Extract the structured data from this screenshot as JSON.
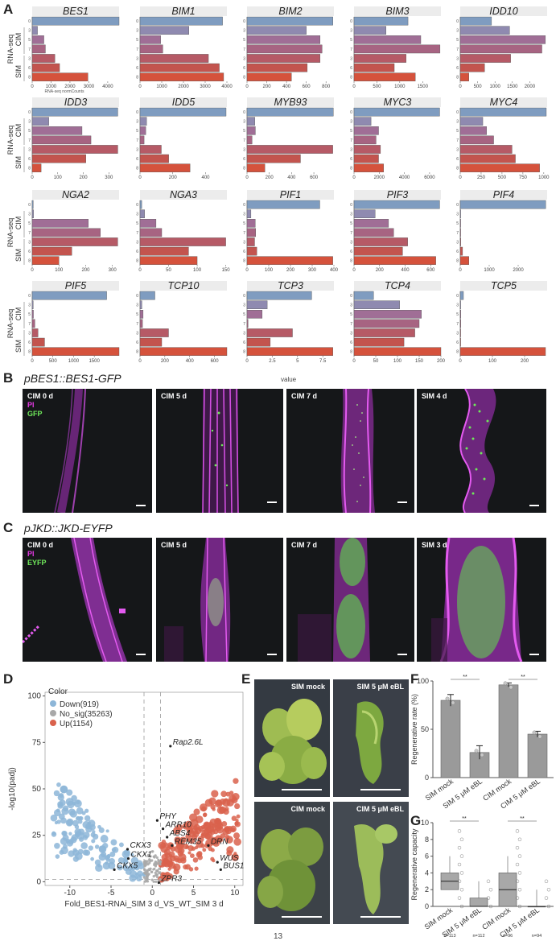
{
  "panel_a": {
    "label": "A",
    "y_axis_label": "RNA-seq",
    "x_axis_label": "RNA-seq normCounts",
    "bottom_label": "value",
    "group_cim": "CIM",
    "group_sim": "SIM",
    "time_points": [
      "0",
      "3",
      "5",
      "7",
      "3",
      "6",
      "8"
    ]
  },
  "chart_data": [
    {
      "type": "bar",
      "title": "BES1",
      "categories": [
        "0",
        "3",
        "5",
        "7",
        "3",
        "6",
        "8"
      ],
      "values": [
        4600,
        280,
        620,
        700,
        1200,
        1450,
        2950
      ],
      "xlim": [
        0,
        4600
      ],
      "ticks": [
        0,
        1000,
        2000,
        3000,
        4000
      ]
    },
    {
      "type": "bar",
      "title": "BIM1",
      "categories": [
        "0",
        "3",
        "5",
        "7",
        "3",
        "6",
        "8"
      ],
      "values": [
        3800,
        2250,
        950,
        1050,
        3150,
        3650,
        3850
      ],
      "xlim": [
        0,
        4000
      ],
      "ticks": [
        0,
        1000,
        2000,
        3000,
        4000
      ]
    },
    {
      "type": "bar",
      "title": "BIM2",
      "categories": [
        "0",
        "3",
        "5",
        "7",
        "3",
        "6",
        "8"
      ],
      "values": [
        870,
        600,
        740,
        760,
        740,
        610,
        450
      ],
      "xlim": [
        0,
        880
      ],
      "ticks": [
        0,
        200,
        400,
        600,
        800
      ]
    },
    {
      "type": "bar",
      "title": "BIM3",
      "categories": [
        "0",
        "3",
        "5",
        "7",
        "3",
        "6",
        "8"
      ],
      "values": [
        1180,
        700,
        1460,
        1880,
        1140,
        880,
        1340
      ],
      "xlim": [
        0,
        1900
      ],
      "ticks": [
        0,
        500,
        1000,
        1500
      ]
    },
    {
      "type": "bar",
      "title": "IDD10",
      "categories": [
        "0",
        "3",
        "5",
        "7",
        "3",
        "6",
        "8"
      ],
      "values": [
        900,
        1420,
        2450,
        2350,
        1450,
        700,
        250
      ],
      "xlim": [
        0,
        2500
      ],
      "ticks": [
        0,
        500,
        1000,
        1500,
        2000
      ]
    },
    {
      "type": "bar",
      "title": "IDD3",
      "categories": [
        "0",
        "3",
        "5",
        "7",
        "3",
        "6",
        "8"
      ],
      "values": [
        335,
        65,
        195,
        230,
        335,
        210,
        35
      ],
      "xlim": [
        0,
        340
      ],
      "ticks": [
        0,
        100,
        200,
        300
      ]
    },
    {
      "type": "bar",
      "title": "IDD5",
      "categories": [
        "0",
        "3",
        "5",
        "7",
        "3",
        "6",
        "8"
      ],
      "values": [
        525,
        40,
        35,
        25,
        130,
        175,
        305
      ],
      "xlim": [
        0,
        530
      ],
      "ticks": [
        0,
        200,
        400
      ]
    },
    {
      "type": "bar",
      "title": "MYB93",
      "categories": [
        "0",
        "3",
        "5",
        "7",
        "3",
        "6",
        "8"
      ],
      "values": [
        775,
        70,
        75,
        45,
        770,
        480,
        160
      ],
      "xlim": [
        0,
        780
      ],
      "ticks": [
        0,
        200,
        400,
        600
      ]
    },
    {
      "type": "bar",
      "title": "MYC3",
      "categories": [
        "0",
        "3",
        "5",
        "7",
        "3",
        "6",
        "8"
      ],
      "values": [
        6800,
        1350,
        1950,
        1750,
        2100,
        1950,
        2350
      ],
      "xlim": [
        0,
        6900
      ],
      "ticks": [
        0,
        2000,
        4000,
        6000
      ]
    },
    {
      "type": "bar",
      "title": "MYC4",
      "categories": [
        "0",
        "3",
        "5",
        "7",
        "3",
        "6",
        "8"
      ],
      "values": [
        1030,
        270,
        315,
        400,
        620,
        660,
        950
      ],
      "xlim": [
        0,
        1040
      ],
      "ticks": [
        0,
        250,
        500,
        750,
        1000
      ]
    },
    {
      "type": "bar",
      "title": "NGA2",
      "categories": [
        "0",
        "3",
        "5",
        "7",
        "3",
        "6",
        "8"
      ],
      "values": [
        4,
        5,
        210,
        255,
        320,
        148,
        100
      ],
      "xlim": [
        0,
        325
      ],
      "ticks": [
        0,
        100,
        200,
        300
      ]
    },
    {
      "type": "bar",
      "title": "NGA3",
      "categories": [
        "0",
        "3",
        "5",
        "7",
        "3",
        "6",
        "8"
      ],
      "values": [
        3,
        8,
        28,
        38,
        150,
        85,
        100
      ],
      "xlim": [
        0,
        152
      ],
      "ticks": [
        0,
        50,
        100,
        150
      ]
    },
    {
      "type": "bar",
      "title": "PIF1",
      "categories": [
        "0",
        "3",
        "5",
        "7",
        "3",
        "6",
        "8"
      ],
      "values": [
        335,
        18,
        38,
        40,
        35,
        45,
        395
      ],
      "xlim": [
        0,
        400
      ],
      "ticks": [
        0,
        100,
        200,
        300,
        400
      ]
    },
    {
      "type": "bar",
      "title": "PIF3",
      "categories": [
        "0",
        "3",
        "5",
        "7",
        "3",
        "6",
        "8"
      ],
      "values": [
        670,
        165,
        270,
        310,
        420,
        380,
        640
      ],
      "xlim": [
        0,
        680
      ],
      "ticks": [
        0,
        200,
        400,
        600
      ]
    },
    {
      "type": "bar",
      "title": "PIF4",
      "categories": [
        "0",
        "3",
        "5",
        "7",
        "3",
        "6",
        "8"
      ],
      "values": [
        2950,
        2,
        2,
        2,
        20,
        80,
        300
      ],
      "xlim": [
        0,
        3000
      ],
      "ticks": [
        0,
        1000,
        2000
      ]
    },
    {
      "type": "bar",
      "title": "PIF5",
      "categories": [
        "0",
        "3",
        "5",
        "7",
        "3",
        "6",
        "8"
      ],
      "values": [
        1800,
        25,
        30,
        65,
        140,
        300,
        2100
      ],
      "xlim": [
        0,
        2100
      ],
      "ticks": [
        0,
        500,
        1000,
        1500
      ]
    },
    {
      "type": "bar",
      "title": "TCP10",
      "categories": [
        "0",
        "3",
        "5",
        "7",
        "3",
        "6",
        "8"
      ],
      "values": [
        120,
        15,
        25,
        20,
        230,
        175,
        700
      ],
      "xlim": [
        0,
        700
      ],
      "ticks": [
        0,
        200,
        400,
        600
      ]
    },
    {
      "type": "bar",
      "title": "TCP3",
      "categories": [
        "0",
        "3",
        "5",
        "7",
        "3",
        "6",
        "8"
      ],
      "values": [
        6.4,
        2.0,
        1.5,
        0.1,
        4.5,
        2.3,
        8.5
      ],
      "xlim": [
        0,
        8.6
      ],
      "ticks": [
        0,
        2.5,
        5.0,
        7.5
      ]
    },
    {
      "type": "bar",
      "title": "TCP4",
      "categories": [
        "0",
        "3",
        "5",
        "7",
        "3",
        "6",
        "8"
      ],
      "values": [
        45,
        105,
        155,
        150,
        140,
        115,
        200
      ],
      "xlim": [
        0,
        200
      ],
      "ticks": [
        0,
        50,
        100,
        150,
        200
      ]
    },
    {
      "type": "bar",
      "title": "TCP5",
      "categories": [
        "0",
        "3",
        "5",
        "7",
        "3",
        "6",
        "8"
      ],
      "values": [
        10,
        1,
        2,
        2,
        1,
        1,
        265
      ],
      "xlim": [
        0,
        270
      ],
      "ticks": [
        0,
        100,
        200
      ]
    },
    {
      "type": "scatter",
      "panel": "D",
      "xlabel": "Fold_BES1-RNAi_SIM 3 d_VS_WT_SIM 3 d",
      "ylabel": "-log10(padj)",
      "legend_title": "Color",
      "legend": [
        "Down(919)",
        "No_sig(35263)",
        "Up(1154)"
      ],
      "xlim": [
        -13,
        11
      ],
      "ylim": [
        -2,
        102
      ],
      "xticks": [
        -10,
        -5,
        0,
        5,
        10
      ],
      "yticks": [
        0,
        25,
        50,
        75,
        100
      ],
      "genes": [
        {
          "name": "Rap2.6L",
          "x": 2.2,
          "y": 73
        },
        {
          "name": "PHY",
          "x": 0.6,
          "y": 33
        },
        {
          "name": "ARR10",
          "x": 1.3,
          "y": 28.5
        },
        {
          "name": "ABS4",
          "x": 1.8,
          "y": 24
        },
        {
          "name": "REM35",
          "x": 2.4,
          "y": 19.5
        },
        {
          "name": "DRN",
          "x": 6.8,
          "y": 19.5
        },
        {
          "name": "WUS",
          "x": 7.9,
          "y": 10.5
        },
        {
          "name": "BUS1",
          "x": 8.3,
          "y": 6.5
        },
        {
          "name": "ZPR3",
          "x": 0.8,
          "y": -0.5
        },
        {
          "name": "CKX3",
          "x": -3.0,
          "y": 17.5
        },
        {
          "name": "CKX1",
          "x": -2.9,
          "y": 12.5
        },
        {
          "name": "CKX5",
          "x": -4.6,
          "y": 6.5
        }
      ]
    },
    {
      "type": "bar",
      "panel": "F",
      "ylabel": "Regenerative rate (%)",
      "categories": [
        "SIM mock",
        "SIM 5 μM eBL",
        "CIM mock",
        "CIM 5 μM eBL"
      ],
      "values": [
        80,
        26,
        96,
        45
      ],
      "errors": [
        6,
        7,
        2,
        3
      ],
      "ylim": [
        0,
        100
      ],
      "yticks": [
        0,
        50,
        100
      ],
      "significance": [
        "**",
        "**"
      ]
    },
    {
      "type": "box",
      "panel": "G",
      "ylabel": "Regenerative capacity",
      "categories": [
        "SIM mock",
        "SIM 5 μM eBL",
        "CIM mock",
        "CIM 5 μM eBL"
      ],
      "n": [
        "n=113",
        "n=112",
        "n=96",
        "n=94"
      ],
      "median": [
        3,
        0,
        2,
        0
      ],
      "q1": [
        2,
        0,
        0,
        0
      ],
      "q3": [
        4,
        1,
        4,
        0
      ],
      "ylim": [
        0,
        10
      ],
      "yticks": [
        0,
        2,
        4,
        6,
        8,
        10
      ],
      "significance": [
        "**",
        "**"
      ]
    }
  ],
  "panel_b": {
    "label": "B",
    "title": "pBES1::BES1-GFP",
    "legend_pi": "PI",
    "legend_gfp": "GFP",
    "images": [
      "CIM 0 d",
      "CIM 5 d",
      "CIM 7 d",
      "SIM 4 d"
    ]
  },
  "panel_c": {
    "label": "C",
    "title": "pJKD::JKD-EYFP",
    "legend_pi": "PI",
    "legend_gfp": "EYFP",
    "images": [
      "CIM 0 d",
      "CIM 5 d",
      "CIM 7 d",
      "SIM 3 d"
    ]
  },
  "panel_d": {
    "label": "D"
  },
  "panel_e": {
    "label": "E",
    "images": [
      "SIM mock",
      "SIM 5 μM eBL",
      "CIM mock",
      "CIM 5 μM eBL"
    ]
  },
  "panel_f": {
    "label": "F"
  },
  "panel_g": {
    "label": "G"
  },
  "page_number": "13",
  "colors": {
    "blue": "#7f9cc0",
    "red": "#d5523c",
    "grey": "#a8a8a8",
    "strip": "#ececec"
  }
}
